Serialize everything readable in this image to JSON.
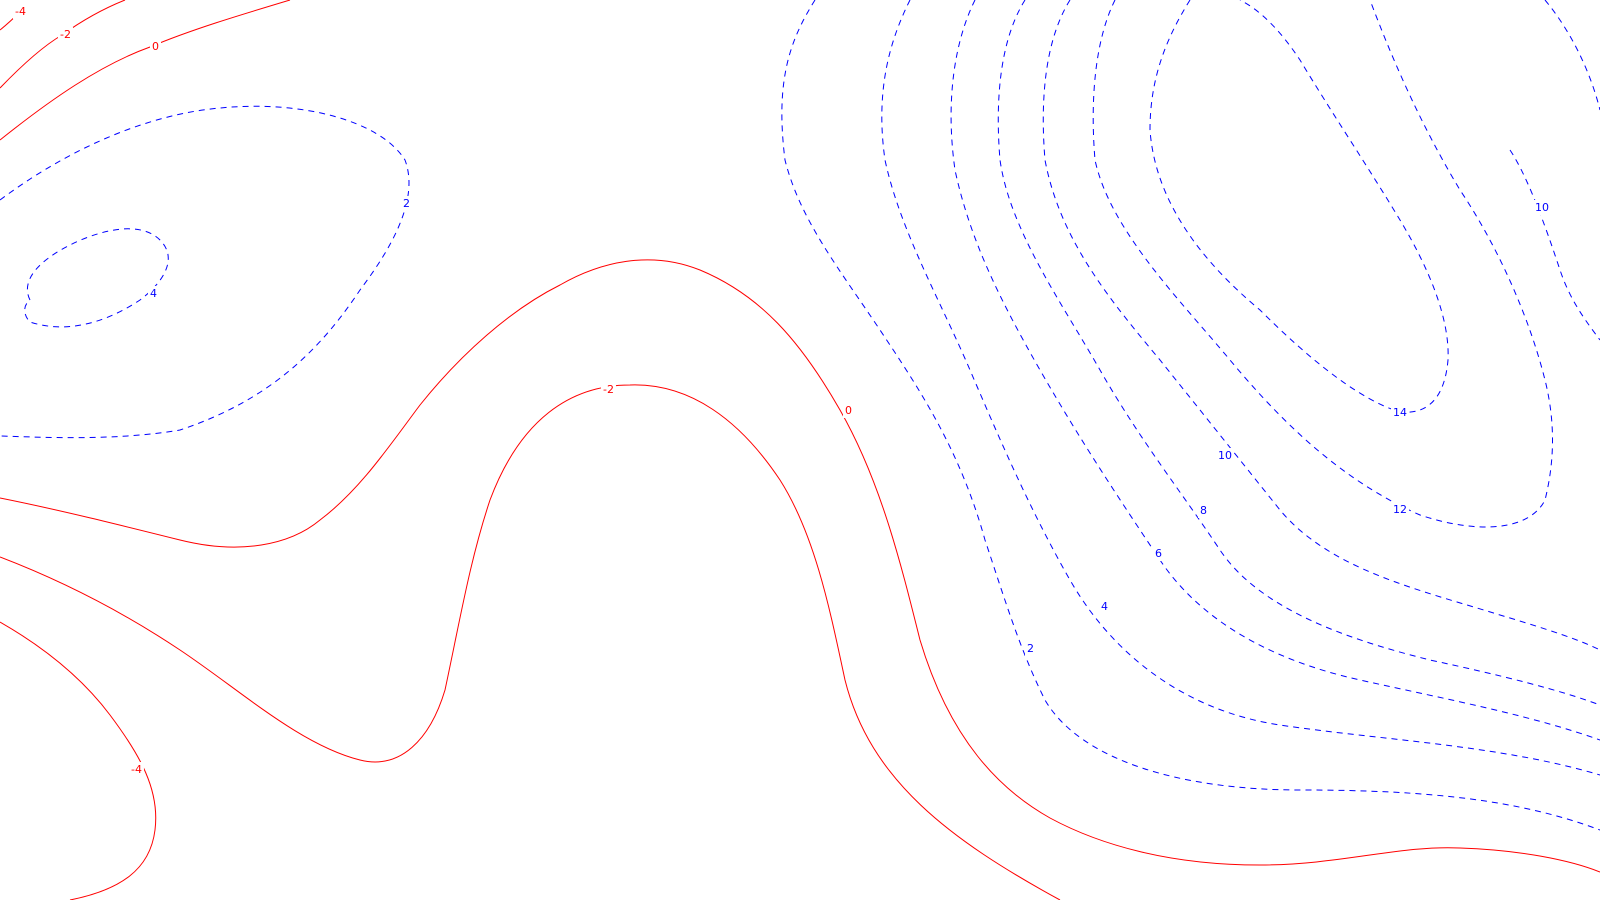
{
  "chart_data": {
    "type": "contour",
    "title": "",
    "xlabel": "",
    "ylabel": "",
    "colors": {
      "negative": "#ff0000",
      "positive": "#0000ff",
      "background": "#ffffff"
    },
    "line_styles": {
      "negative": "solid",
      "positive": "dashed"
    },
    "levels": [
      -4,
      -2,
      0,
      2,
      4,
      6,
      8,
      10,
      12,
      14
    ],
    "contour_labels": [
      "-4",
      "-2",
      "0",
      "2",
      "4",
      "-2",
      "0",
      "-4",
      "14",
      "10",
      "12",
      "10",
      "8",
      "6",
      "4",
      "2"
    ]
  }
}
